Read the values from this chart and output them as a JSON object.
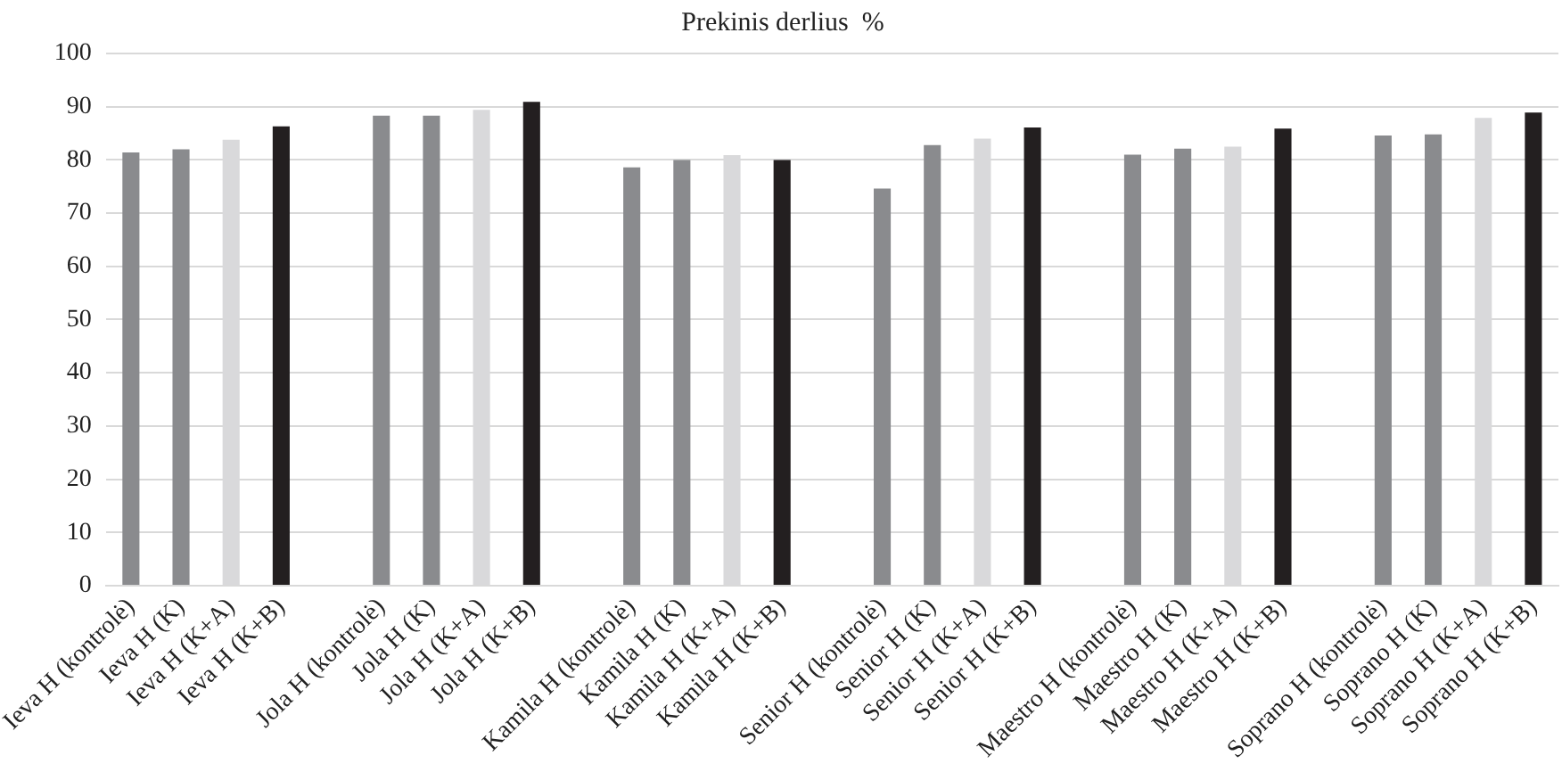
{
  "chart_data": {
    "type": "bar",
    "title": "Prekinis derlius  %",
    "categories": [
      "Ieva H (kontrolė)",
      "Ieva H (K)",
      "Ieva H (K+A)",
      "Ieva H (K+B)",
      null,
      "Jola H (kontrolė)",
      "Jola H (K)",
      "Jola H (K+A)",
      "Jola H (K+B)",
      null,
      "Kamila H (kontrolė)",
      "Kamila H (K)",
      "Kamila H (K+A)",
      "Kamila H (K+B)",
      null,
      "Senior H (kontrolė)",
      "Senior H (K)",
      "Senior H (K+A)",
      "Senior H (K+B)",
      null,
      "Maestro H (kontrolė)",
      "Maestro H (K)",
      "Maestro H (K+A)",
      "Maestro H (K+B)",
      null,
      "Soprano H (kontrolė)",
      "Soprano H (K)",
      "Soprano H (K+A)",
      "Soprano H (K+B)"
    ],
    "values": [
      81.4,
      82,
      83.8,
      86.3,
      null,
      88.3,
      88.3,
      89.4,
      90.9,
      null,
      78.6,
      80,
      80.9,
      80,
      null,
      74.6,
      82.8,
      84,
      86.1,
      null,
      81,
      82.1,
      82.5,
      85.9,
      null,
      84.6,
      84.8,
      87.9,
      88.9
    ],
    "colors": [
      "#8a8b8e",
      "#8a8b8e",
      "#d9d9db",
      "#231f20",
      "#ffffff",
      "#8a8b8e",
      "#8a8b8e",
      "#d9d9db",
      "#231f20",
      "#ffffff",
      "#8a8b8e",
      "#8a8b8e",
      "#d9d9db",
      "#231f20",
      "#ffffff",
      "#8a8b8e",
      "#8a8b8e",
      "#d9d9db",
      "#231f20",
      "#ffffff",
      "#8a8b8e",
      "#8a8b8e",
      "#d9d9db",
      "#231f20",
      "#ffffff",
      "#8a8b8e",
      "#8a8b8e",
      "#d9d9db",
      "#231f20"
    ],
    "ylim": [
      0,
      100
    ],
    "yticks": [
      0,
      10,
      20,
      30,
      40,
      50,
      60,
      70,
      80,
      90,
      100
    ],
    "grid": "y",
    "legend": false
  }
}
